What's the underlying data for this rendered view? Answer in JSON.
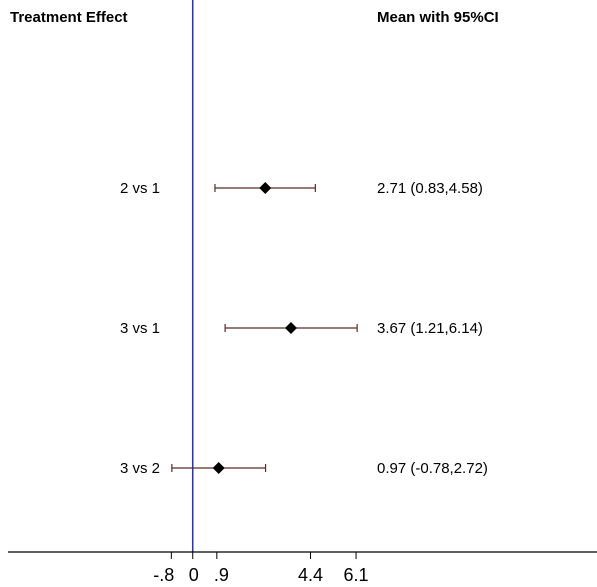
{
  "chart_data": {
    "type": "forest",
    "header_left": "Treatment Effect",
    "header_right": "Mean with 95%CI",
    "reference_line": 0,
    "xlim": [
      -6.9,
      15.1
    ],
    "ticks": [
      -0.8,
      0,
      0.9,
      4.4,
      6.1
    ],
    "tick_labels": [
      "-.8",
      "0",
      ".9",
      "4.4",
      "6.1"
    ],
    "rows": [
      {
        "label": "2 vs 1",
        "mean": 2.71,
        "lower": 0.83,
        "upper": 4.58,
        "ci_text": "2.71 (0.83,4.58)"
      },
      {
        "label": "3 vs 1",
        "mean": 3.67,
        "lower": 1.21,
        "upper": 6.14,
        "ci_text": "3.67 (1.21,6.14)"
      },
      {
        "label": "3 vs 2",
        "mean": 0.97,
        "lower": -0.78,
        "upper": 2.72,
        "ci_text": "0.97 (-0.78,2.72)"
      }
    ],
    "colors": {
      "reference_line": "#2b2bd6",
      "ci_line": "#5a2a2a",
      "marker": "#000000",
      "axis": "#000000"
    }
  }
}
